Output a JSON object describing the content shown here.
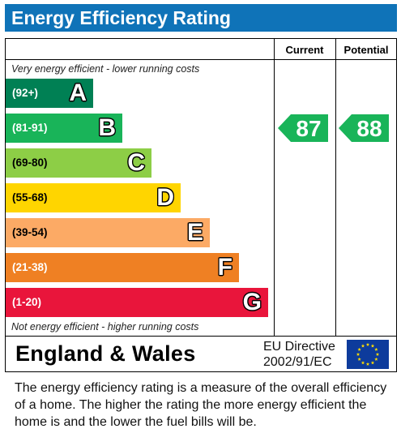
{
  "title": "Energy Efficiency Rating",
  "columns": {
    "current": "Current",
    "potential": "Potential"
  },
  "captions": {
    "top": "Very energy efficient - lower running costs",
    "bottom": "Not energy efficient - higher running costs"
  },
  "chart_data": {
    "type": "bar",
    "categories": [
      "A",
      "B",
      "C",
      "D",
      "E",
      "F",
      "G"
    ],
    "ranges": [
      "(92+)",
      "(81-91)",
      "(69-80)",
      "(55-68)",
      "(39-54)",
      "(21-38)",
      "(1-20)"
    ],
    "colors": [
      "#008054",
      "#19b459",
      "#8dce46",
      "#ffd500",
      "#fcaa65",
      "#ef8023",
      "#e9153b"
    ],
    "current": {
      "value": 87,
      "band": "B"
    },
    "potential": {
      "value": 88,
      "band": "B"
    }
  },
  "footer": {
    "region": "England & Wales",
    "directive_line1": "EU Directive",
    "directive_line2": "2002/91/EC"
  },
  "description": "The energy efficiency rating is a measure of the overall efficiency of a home.  The higher the rating the more energy efficient the home is and the lower the fuel bills will be."
}
